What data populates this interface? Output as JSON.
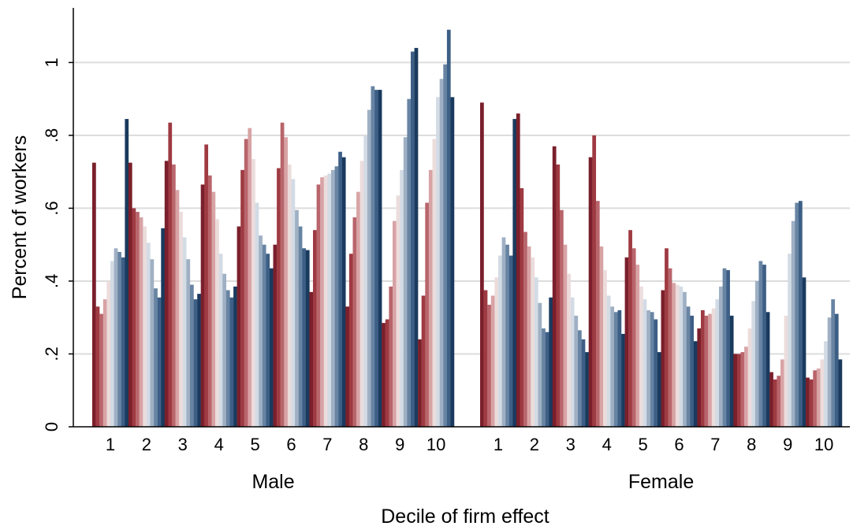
{
  "chart_data": {
    "type": "bar",
    "xlabel": "Decile of firm effect",
    "ylabel": "Percent of workers",
    "ylim": [
      0,
      1.15
    ],
    "yticks": [
      0,
      0.2,
      0.4,
      0.6,
      0.8,
      1
    ],
    "ytick_labels": [
      "0",
      ".2",
      ".4",
      ".6",
      ".8",
      "1"
    ],
    "grid": true,
    "legend": "none",
    "colors": [
      "#7a1f2b",
      "#9e3a42",
      "#b8656b",
      "#d8a3a5",
      "#ecdcdc",
      "#d3dbe5",
      "#9fb0c4",
      "#6884a3",
      "#3d5f86",
      "#1a3a5e"
    ],
    "groups": [
      {
        "name": "Male",
        "categories": [
          "1",
          "2",
          "3",
          "4",
          "5",
          "6",
          "7",
          "8",
          "9",
          "10"
        ],
        "values": [
          [
            0.725,
            0.33,
            0.31,
            0.35,
            0.4,
            0.455,
            0.49,
            0.48,
            0.465,
            0.845
          ],
          [
            0.725,
            0.6,
            0.59,
            0.575,
            0.55,
            0.505,
            0.46,
            0.38,
            0.355,
            0.545
          ],
          [
            0.73,
            0.835,
            0.72,
            0.65,
            0.59,
            0.52,
            0.46,
            0.39,
            0.35,
            0.365
          ],
          [
            0.665,
            0.775,
            0.69,
            0.645,
            0.57,
            0.475,
            0.42,
            0.375,
            0.355,
            0.385
          ],
          [
            0.55,
            0.705,
            0.79,
            0.82,
            0.735,
            0.615,
            0.525,
            0.5,
            0.475,
            0.435
          ],
          [
            0.5,
            0.71,
            0.835,
            0.795,
            0.72,
            0.68,
            0.595,
            0.55,
            0.49,
            0.485
          ],
          [
            0.37,
            0.54,
            0.665,
            0.685,
            0.69,
            0.695,
            0.705,
            0.715,
            0.755,
            0.74
          ],
          [
            0.33,
            0.475,
            0.575,
            0.645,
            0.73,
            0.8,
            0.87,
            0.935,
            0.925,
            0.925
          ],
          [
            0.285,
            0.295,
            0.385,
            0.565,
            0.635,
            0.705,
            0.795,
            0.9,
            1.03,
            1.04
          ],
          [
            0.24,
            0.36,
            0.615,
            0.705,
            0.79,
            0.905,
            0.955,
            0.995,
            1.09,
            0.905
          ]
        ]
      },
      {
        "name": "Female",
        "categories": [
          "1",
          "2",
          "3",
          "4",
          "5",
          "6",
          "7",
          "8",
          "9",
          "10"
        ],
        "values": [
          [
            0.89,
            0.375,
            0.335,
            0.36,
            0.41,
            0.47,
            0.52,
            0.5,
            0.47,
            0.845
          ],
          [
            0.86,
            0.655,
            0.535,
            0.495,
            0.465,
            0.41,
            0.34,
            0.27,
            0.26,
            0.355
          ],
          [
            0.77,
            0.72,
            0.595,
            0.5,
            0.42,
            0.355,
            0.305,
            0.265,
            0.24,
            0.205
          ],
          [
            0.74,
            0.8,
            0.62,
            0.495,
            0.43,
            0.36,
            0.33,
            0.315,
            0.32,
            0.255
          ],
          [
            0.465,
            0.54,
            0.49,
            0.445,
            0.385,
            0.35,
            0.32,
            0.315,
            0.295,
            0.205
          ],
          [
            0.375,
            0.49,
            0.435,
            0.395,
            0.39,
            0.385,
            0.37,
            0.33,
            0.305,
            0.235
          ],
          [
            0.27,
            0.32,
            0.305,
            0.31,
            0.325,
            0.35,
            0.385,
            0.435,
            0.43,
            0.305
          ],
          [
            0.2,
            0.2,
            0.205,
            0.22,
            0.27,
            0.345,
            0.4,
            0.455,
            0.445,
            0.315
          ],
          [
            0.15,
            0.13,
            0.14,
            0.185,
            0.305,
            0.475,
            0.565,
            0.615,
            0.62,
            0.41
          ],
          [
            0.135,
            0.13,
            0.155,
            0.16,
            0.185,
            0.235,
            0.3,
            0.35,
            0.31,
            0.185
          ]
        ]
      }
    ]
  }
}
